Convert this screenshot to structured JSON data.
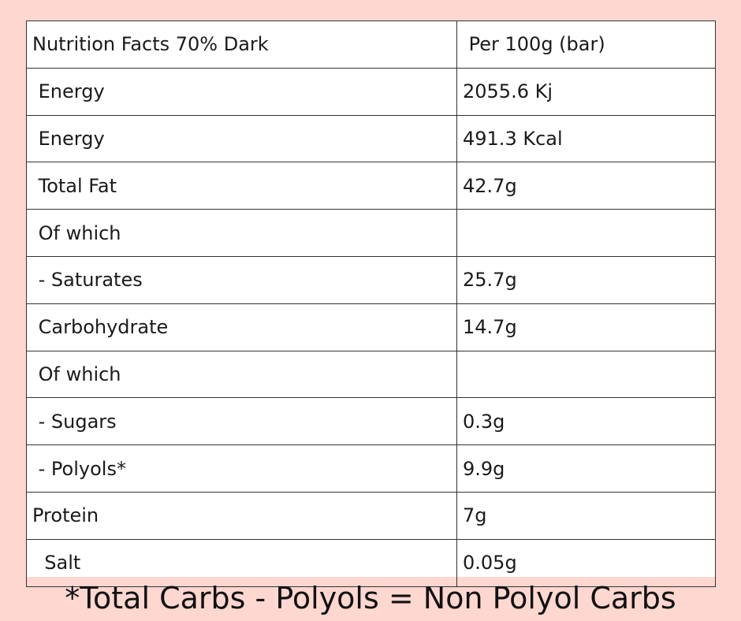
{
  "table": {
    "header": {
      "label": "Nutrition Facts 70% Dark",
      "value": " Per 100g (bar)"
    },
    "rows": [
      {
        "label": " Energy",
        "value": "2055.6 Kj"
      },
      {
        "label": " Energy",
        "value": "491.3 Kcal"
      },
      {
        "label": " Total Fat",
        "value": "42.7g"
      },
      {
        "label": " Of which",
        "value": ""
      },
      {
        "label": " - Saturates",
        "value": "25.7g"
      },
      {
        "label": " Carbohydrate",
        "value": "14.7g"
      },
      {
        "label": " Of which",
        "value": ""
      },
      {
        "label": " - Sugars",
        "value": "0.3g"
      },
      {
        "label": " - Polyols*",
        "value": "9.9g"
      },
      {
        "label": "Protein",
        "value": "7g"
      },
      {
        "label": "  Salt",
        "value": "0.05g"
      }
    ]
  },
  "footnote": "*Total Carbs - Polyols = Non Polyol Carbs",
  "colors": {
    "background": "#fdd7d0",
    "table_background": "#ffffff",
    "border": "#333333",
    "text": "#1a1a1a"
  }
}
